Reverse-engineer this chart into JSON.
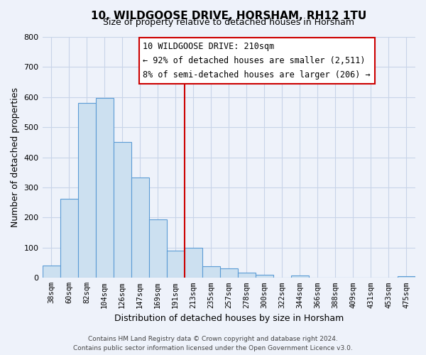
{
  "title": "10, WILDGOOSE DRIVE, HORSHAM, RH12 1TU",
  "subtitle": "Size of property relative to detached houses in Horsham",
  "xlabel": "Distribution of detached houses by size in Horsham",
  "ylabel": "Number of detached properties",
  "bar_labels": [
    "38sqm",
    "60sqm",
    "82sqm",
    "104sqm",
    "126sqm",
    "147sqm",
    "169sqm",
    "191sqm",
    "213sqm",
    "235sqm",
    "257sqm",
    "278sqm",
    "300sqm",
    "322sqm",
    "344sqm",
    "366sqm",
    "388sqm",
    "409sqm",
    "431sqm",
    "453sqm",
    "475sqm"
  ],
  "bar_values": [
    40,
    262,
    580,
    598,
    450,
    332,
    193,
    90,
    100,
    38,
    32,
    18,
    10,
    0,
    8,
    0,
    0,
    0,
    0,
    0,
    5
  ],
  "bar_color": "#cce0f0",
  "bar_edge_color": "#5b9bd5",
  "vline_x_index": 8,
  "vline_color": "#cc0000",
  "annotation_title": "10 WILDGOOSE DRIVE: 210sqm",
  "annotation_line1": "← 92% of detached houses are smaller (2,511)",
  "annotation_line2": "8% of semi-detached houses are larger (206) →",
  "annotation_box_color": "#ffffff",
  "annotation_box_edge": "#cc0000",
  "ylim": [
    0,
    800
  ],
  "yticks": [
    0,
    100,
    200,
    300,
    400,
    500,
    600,
    700,
    800
  ],
  "footer_line1": "Contains HM Land Registry data © Crown copyright and database right 2024.",
  "footer_line2": "Contains public sector information licensed under the Open Government Licence v3.0.",
  "bg_color": "#eef2fa",
  "grid_color": "#c8d4e8",
  "title_fontsize": 11,
  "subtitle_fontsize": 9
}
